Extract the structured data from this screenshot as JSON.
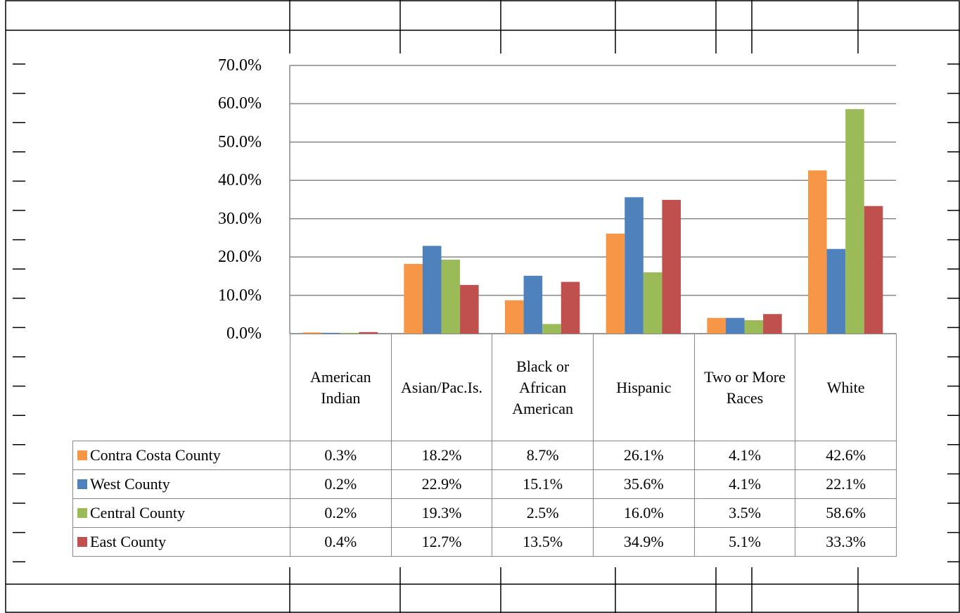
{
  "chart_data": {
    "type": "bar",
    "categories": [
      "American Indian",
      "Asian/Pac.Is.",
      "Black or African American",
      "Hispanic",
      "Two or More Races",
      "White"
    ],
    "series": [
      {
        "name": "Contra Costa County",
        "color": "#f79646",
        "values": [
          0.3,
          18.2,
          8.7,
          26.1,
          4.1,
          42.6
        ],
        "value_labels": [
          "0.3%",
          "18.2%",
          "8.7%",
          "26.1%",
          "4.1%",
          "42.6%"
        ]
      },
      {
        "name": "West County",
        "color": "#4f81bd",
        "values": [
          0.2,
          22.9,
          15.1,
          35.6,
          4.1,
          22.1
        ],
        "value_labels": [
          "0.2%",
          "22.9%",
          "15.1%",
          "35.6%",
          "4.1%",
          "22.1%"
        ]
      },
      {
        "name": "Central County",
        "color": "#9bbb59",
        "values": [
          0.2,
          19.3,
          2.5,
          16.0,
          3.5,
          58.6
        ],
        "value_labels": [
          "0.2%",
          "19.3%",
          "2.5%",
          "16.0%",
          "3.5%",
          "58.6%"
        ]
      },
      {
        "name": "East County",
        "color": "#c0504d",
        "values": [
          0.4,
          12.7,
          13.5,
          34.9,
          5.1,
          33.3
        ],
        "value_labels": [
          "0.4%",
          "12.7%",
          "13.5%",
          "34.9%",
          "5.1%",
          "33.3%"
        ]
      }
    ],
    "ylim": [
      0,
      70
    ],
    "yticks": [
      {
        "value": 0,
        "label": "0.0%"
      },
      {
        "value": 10,
        "label": "10.0%"
      },
      {
        "value": 20,
        "label": "20.0%"
      },
      {
        "value": 30,
        "label": "30.0%"
      },
      {
        "value": 40,
        "label": "40.0%"
      },
      {
        "value": 50,
        "label": "50.0%"
      },
      {
        "value": 60,
        "label": "60.0%"
      },
      {
        "value": 70,
        "label": "70.0%"
      }
    ],
    "grid": true
  }
}
